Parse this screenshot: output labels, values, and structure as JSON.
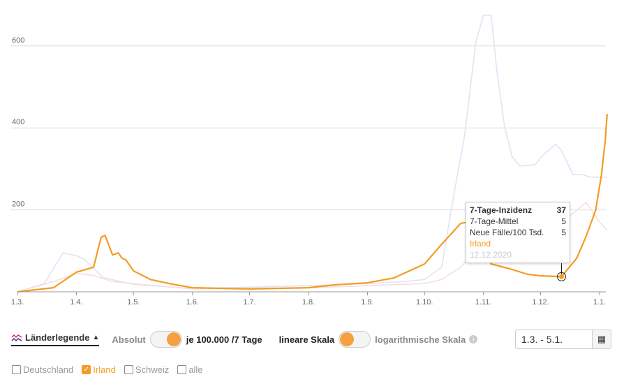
{
  "chart_data": {
    "type": "line",
    "title": "",
    "xlabel": "",
    "ylabel": "7-Tage-Inzidenz je 100.000",
    "x_unit": "days since 1.3.2020",
    "xlim": [
      0,
      310
    ],
    "ylim": [
      0,
      680
    ],
    "grid": true,
    "y_ticks": [
      200,
      400,
      600
    ],
    "x_ticks": [
      {
        "day": 0,
        "label": "1.3."
      },
      {
        "day": 31,
        "label": "1.4."
      },
      {
        "day": 61,
        "label": "1.5."
      },
      {
        "day": 92,
        "label": "1.6."
      },
      {
        "day": 122,
        "label": "1.7."
      },
      {
        "day": 153,
        "label": "1.8."
      },
      {
        "day": 184,
        "label": "1.9."
      },
      {
        "day": 214,
        "label": "1.10."
      },
      {
        "day": 245,
        "label": "1.11."
      },
      {
        "day": 275,
        "label": "1.12."
      },
      {
        "day": 306,
        "label": "1.1."
      }
    ],
    "series": [
      {
        "name": "Schweiz",
        "color": "#e4e2f5",
        "highlighted": false,
        "x": [
          0,
          14,
          24,
          31,
          35,
          45,
          61,
          92,
          153,
          184,
          203,
          214,
          223,
          228,
          235,
          241,
          245,
          249,
          252,
          256,
          260,
          264,
          272,
          277,
          283,
          286,
          292,
          297,
          301,
          310
        ],
        "y": [
          0,
          20,
          95,
          88,
          80,
          35,
          18,
          8,
          15,
          20,
          25,
          30,
          60,
          200,
          380,
          610,
          675,
          675,
          540,
          405,
          330,
          307,
          310,
          337,
          360,
          345,
          286,
          286,
          280,
          280
        ]
      },
      {
        "name": "Deutschland",
        "color": "#f6dede",
        "highlighted": false,
        "x": [
          0,
          19,
          31,
          40,
          50,
          61,
          92,
          153,
          184,
          214,
          223,
          233,
          245,
          254,
          275,
          289,
          299,
          306,
          310
        ],
        "y": [
          0,
          25,
          45,
          40,
          25,
          20,
          7,
          10,
          15,
          20,
          30,
          60,
          125,
          140,
          145,
          180,
          218,
          170,
          150
        ]
      },
      {
        "name": "Irland",
        "color": "#f39c23",
        "highlighted": true,
        "x": [
          0,
          19,
          31,
          40,
          44,
          46,
          50,
          53,
          55,
          57,
          61,
          70,
          81,
          92,
          122,
          153,
          167,
          184,
          198,
          214,
          223,
          233,
          237,
          243,
          249,
          259,
          268,
          275,
          286,
          294,
          299,
          304,
          307,
          309,
          310
        ],
        "y": [
          0,
          10,
          48,
          60,
          133,
          138,
          90,
          95,
          82,
          78,
          51,
          30,
          19,
          10,
          7,
          10,
          17,
          22,
          34,
          68,
          116,
          167,
          170,
          120,
          68,
          56,
          43,
          39,
          37,
          82,
          136,
          200,
          286,
          370,
          434
        ]
      }
    ],
    "tooltip": {
      "title": "7-Tage-Inzidenz",
      "title_value": "37",
      "rows": [
        {
          "label": "7-Tage-Mittel",
          "value": "5"
        },
        {
          "label": "Neue Fälle/100 Tsd.",
          "value": "5"
        }
      ],
      "country": "Irland",
      "date": "12.12.2020",
      "day": 286,
      "value": 37
    }
  },
  "controls": {
    "legend_label": "Länderlegende",
    "legend_arrow": "▲",
    "absolut": "Absolut",
    "per100k": "je 100.000 /7 Tage",
    "linear": "lineare Skala",
    "log": "logarithmische Skala",
    "info": "i",
    "date_range": "1.3. - 5.1.",
    "accent": "#f39c23"
  },
  "countries": [
    {
      "label": "Deutschland",
      "checked": false
    },
    {
      "label": "Irland",
      "checked": true
    },
    {
      "label": "Schweiz",
      "checked": false
    },
    {
      "label": "alle",
      "checked": false
    }
  ]
}
